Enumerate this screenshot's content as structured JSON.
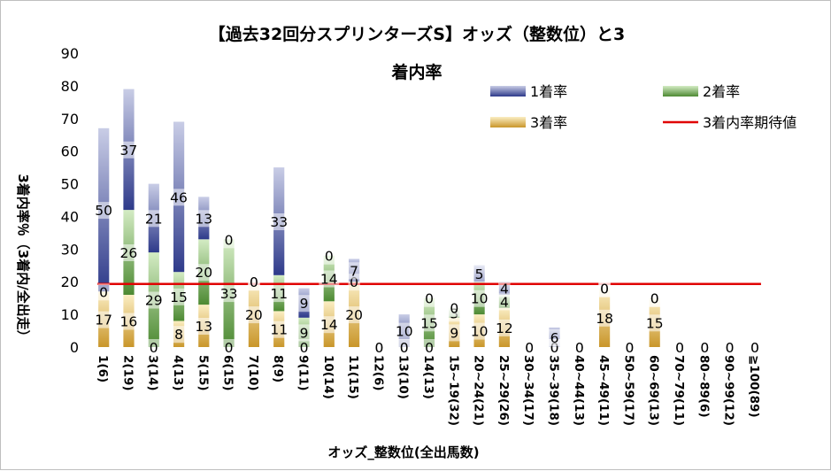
{
  "chart_data": {
    "type": "bar",
    "stacked": true,
    "title": "【過去32回分スプリンターズS】オッズ（整数位）と3着内率",
    "xlabel": "オッズ_整数位(全出馬数)",
    "ylabel": "3着内率％（3着内/全出走）",
    "ylim": [
      0,
      90
    ],
    "yticks": [
      "0",
      "10",
      "20",
      "30",
      "40",
      "50",
      "60",
      "70",
      "80",
      "90"
    ],
    "grid": false,
    "legend_position": "top-right",
    "categories": [
      "1(6)",
      "2(19)",
      "3(14)",
      "4(13)",
      "5(15)",
      "6(15)",
      "7(10)",
      "8(9)",
      "9(11)",
      "10(14)",
      "11(15)",
      "12(6)",
      "13(10)",
      "14(13)",
      "15~19(32)",
      "20~24(21)",
      "25~29(26)",
      "30~34(17)",
      "35~39(18)",
      "40~44(13)",
      "45~49(11)",
      "50~59(17)",
      "60~69(13)",
      "70~79(11)",
      "80~89(6)",
      "90~99(12)",
      "≧100(89)"
    ],
    "series": [
      {
        "name": "1着率",
        "color": "#4a55a2",
        "values": [
          50,
          37,
          21,
          46,
          13,
          0,
          0,
          33,
          9,
          0,
          7,
          0,
          10,
          0,
          0,
          5,
          4,
          0,
          6,
          0,
          0,
          0,
          0,
          0,
          0,
          0,
          0
        ],
        "labels": [
          "50",
          "37",
          "21",
          "46",
          "13",
          "0",
          "0",
          "33",
          "9",
          "0",
          "7",
          "0",
          "10",
          "0",
          "0",
          "5",
          "4",
          "0",
          "6",
          "0",
          "0",
          "0",
          "0",
          "0",
          "0",
          "0",
          "0"
        ]
      },
      {
        "name": "2着率",
        "color": "#6aa84f",
        "values": [
          0,
          26,
          29,
          15,
          20,
          33,
          0,
          11,
          9,
          14,
          0,
          0,
          0,
          15,
          3,
          10,
          4,
          0,
          0,
          0,
          0,
          0,
          0,
          0,
          0,
          0,
          0
        ],
        "labels": [
          "0",
          "26",
          "29",
          "15",
          "20",
          "33",
          "0",
          "11",
          "9",
          "14",
          "0",
          "0",
          "0",
          "15",
          "3",
          "10",
          "4",
          "0",
          "0",
          "0",
          "0",
          "0",
          "0",
          "0",
          "0",
          "0",
          "0"
        ]
      },
      {
        "name": "3着率",
        "color": "#e6b74d",
        "values": [
          17,
          16,
          0,
          8,
          13,
          0,
          20,
          11,
          0,
          14,
          20,
          0,
          0,
          0,
          9,
          10,
          12,
          0,
          0,
          0,
          18,
          0,
          15,
          0,
          0,
          0,
          0
        ],
        "labels": [
          "17",
          "16",
          "0",
          "8",
          "13",
          "0",
          "20",
          "11",
          "0",
          "14",
          "20",
          "0",
          "0",
          "0",
          "9",
          "10",
          "12",
          "0",
          "0",
          "0",
          "18",
          "0",
          "15",
          "0",
          "0",
          "0",
          "0"
        ]
      }
    ],
    "reference_line": {
      "name": "3着内率期待値",
      "value": 19.3,
      "color": "#e00000"
    }
  }
}
